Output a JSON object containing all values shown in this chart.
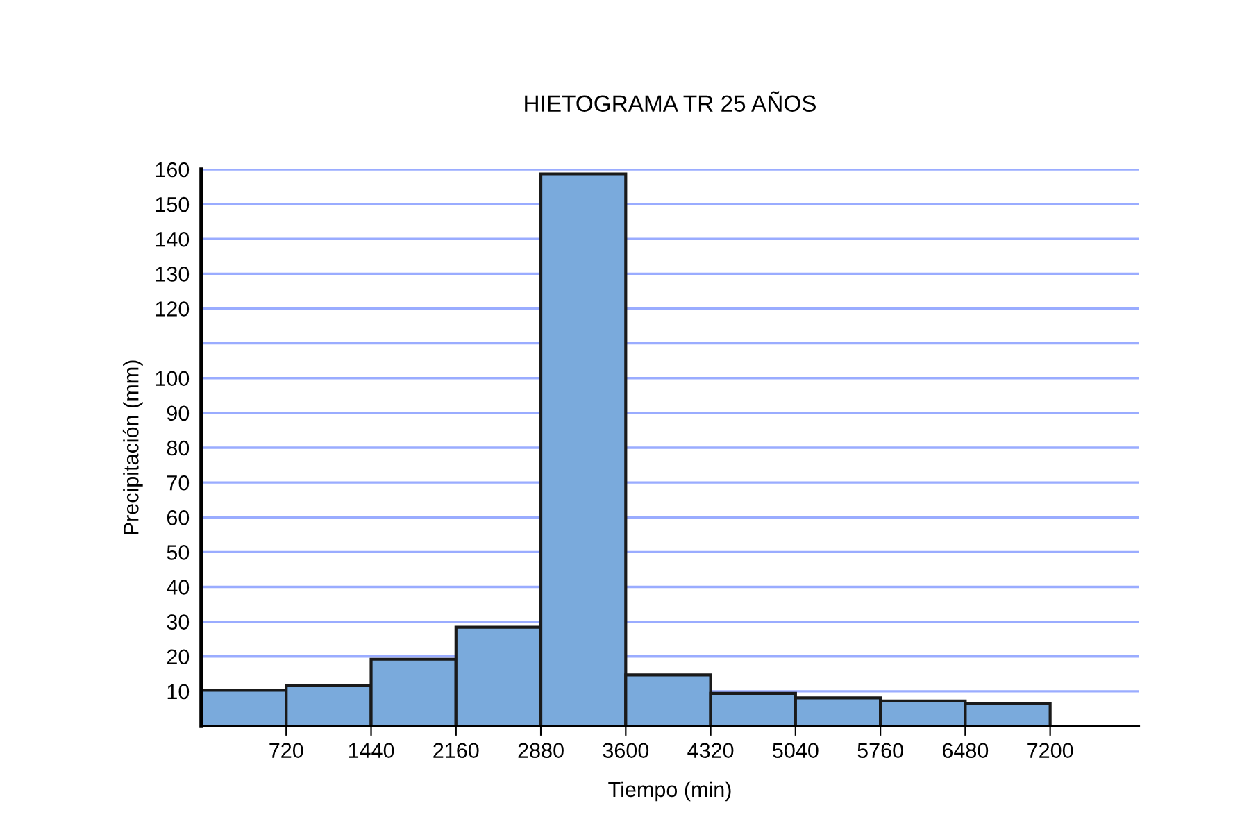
{
  "chart_data": {
    "type": "histogram",
    "title": "HIETOGRAMA TR 25 AÑOS",
    "xlabel": "Tiempo (min)",
    "ylabel": "Precipitación (mm)",
    "bins": [
      0,
      720,
      1440,
      2160,
      2880,
      3600,
      4320,
      5040,
      5760,
      6480,
      7200
    ],
    "values": [
      10.3,
      11.6,
      19.2,
      28.4,
      158.7,
      14.7,
      9.4,
      8.1,
      7.2,
      6.5
    ],
    "color": "#7aaadc",
    "xlim": [
      0,
      7950
    ],
    "xticks": [
      720,
      1440,
      2160,
      2880,
      3600,
      4320,
      5040,
      5760,
      6480,
      7200
    ],
    "ylim": [
      0,
      160
    ],
    "yticks": [
      10,
      20,
      30,
      40,
      50,
      60,
      70,
      80,
      90,
      100,
      {
        "value": 110,
        "label": null
      },
      120,
      130,
      140,
      150,
      160
    ],
    "grid": "y"
  }
}
